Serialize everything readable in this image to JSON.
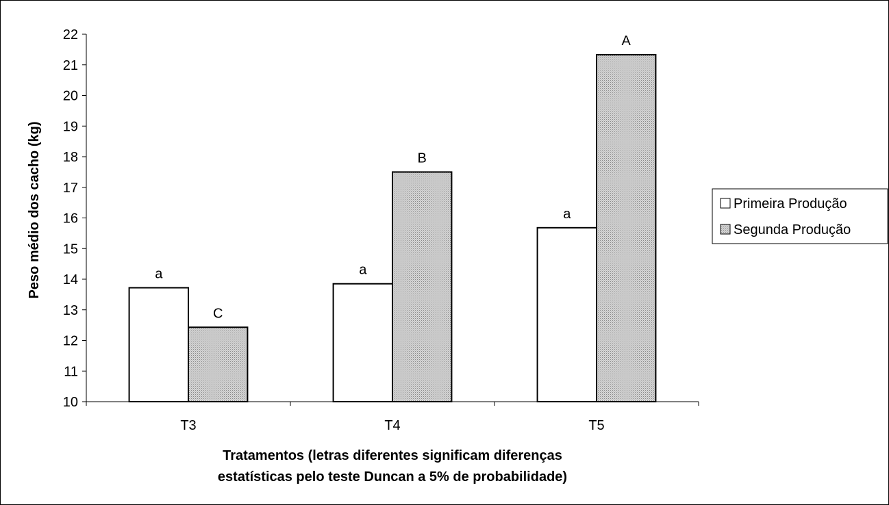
{
  "chart_data": {
    "type": "bar",
    "categories": [
      "T3",
      "T4",
      "T5"
    ],
    "series": [
      {
        "name": "Primeira Produção",
        "values": [
          13.72,
          13.85,
          15.68
        ],
        "labels": [
          "a",
          "a",
          "a"
        ],
        "color": "#ffffff"
      },
      {
        "name": "Segunda Produção",
        "values": [
          12.43,
          17.5,
          21.33
        ],
        "labels": [
          "C",
          "B",
          "A"
        ],
        "color": "#c8c8c8"
      }
    ],
    "ylabel": "Peso médio dos cacho (kg)",
    "xlabel_lines": [
      "Tratamentos (letras diferentes significam diferenças",
      "estatísticas pelo teste Duncan a 5% de probabilidade)"
    ],
    "ylim": [
      10,
      22
    ],
    "yticks": [
      10,
      11,
      12,
      13,
      14,
      15,
      16,
      17,
      18,
      19,
      20,
      21,
      22
    ],
    "grid": false,
    "legend_position": "right"
  }
}
